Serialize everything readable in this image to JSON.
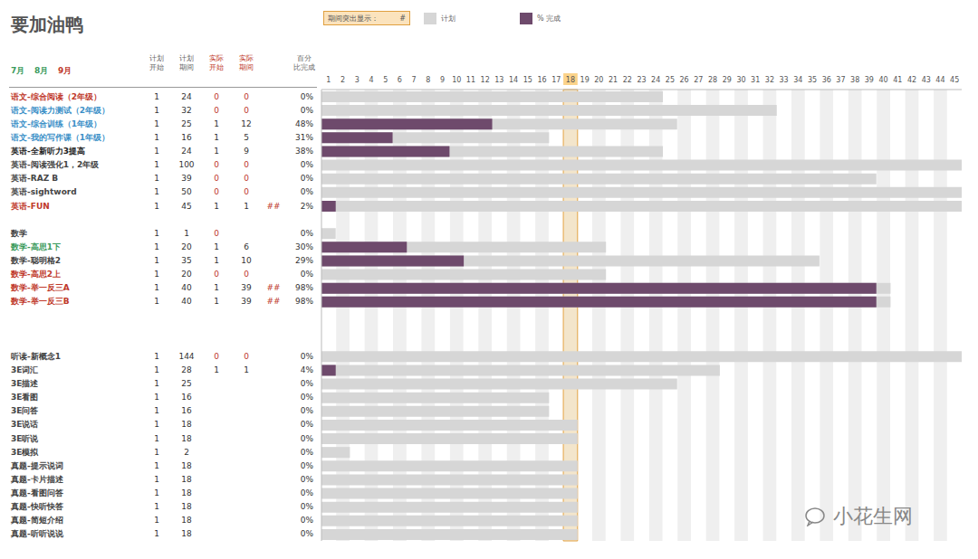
{
  "chart_data": {
    "type": "gantt",
    "title": "要加油鸭",
    "months": [
      {
        "label": "7月",
        "color": "#3a9a5b"
      },
      {
        "label": "8月",
        "color": "#3a9a5b"
      },
      {
        "label": "9月",
        "color": "#c0392b"
      }
    ],
    "columns": [
      "计划开始",
      "计划期间",
      "实际开始",
      "实际期间",
      "百分比完成"
    ],
    "column_colors": [
      "#666666",
      "#666666",
      "#c0392b",
      "#c0392b",
      "#666666"
    ],
    "highlight_label": "期间突出显示：",
    "highlight_text": "#",
    "highlight_period": 18,
    "series": [
      {
        "name": "计划",
        "color": "#d6d6d6"
      },
      {
        "name": "% 完成",
        "color": "#6e4a6c"
      }
    ],
    "legend": "top",
    "grid": true,
    "xlim": [
      1,
      46
    ],
    "xticks": [
      1,
      2,
      3,
      4,
      5,
      6,
      7,
      8,
      9,
      10,
      11,
      12,
      13,
      14,
      15,
      16,
      17,
      18,
      19,
      20,
      21,
      22,
      23,
      24,
      25,
      26,
      27,
      28,
      29,
      30,
      31,
      32,
      33,
      34,
      35,
      36,
      37,
      38,
      39,
      40,
      41,
      42,
      43,
      44,
      45
    ],
    "categories": [
      "语文-综合阅读（2年级）",
      "语文-阅读力测试（2年级）",
      "语文-综合训练（1年级）",
      "语文-我的写作课（1年级）",
      "英语-全新听力3提高",
      "英语-阅读强化1，2年级",
      "英语-RAZ B",
      "英语-sightword",
      "英语-FUN",
      null,
      "数学",
      "数学-高思1下",
      "数学-聪明格2",
      "数学-高思2上",
      "数学-举一反三A",
      "数学-举一反三B",
      null,
      null,
      null,
      "听读-新概念1",
      "3E词汇",
      "3E描述",
      "3E看图",
      "3E问答",
      "3E说话",
      "3E听说",
      "3E模拟",
      "真题-提示说词",
      "真题-卡片描述",
      "真题-看图问答",
      "真题-快听快答",
      "真题-简短介绍",
      "真题-听听说说"
    ],
    "label_colors": [
      "#c0392b",
      "#3a8fc7",
      "#3a8fc7",
      "#3a8fc7",
      "#222222",
      "#444444",
      "#444444",
      "#444444",
      "#c0392b",
      null,
      "#444444",
      "#3a9a5b",
      "#444444",
      "#c0392b",
      "#c0392b",
      "#c0392b",
      null,
      null,
      null,
      "#444444",
      "#444444",
      "#444444",
      "#444444",
      "#444444",
      "#444444",
      "#444444",
      "#444444",
      "#444444",
      "#444444",
      "#444444",
      "#444444",
      "#444444",
      "#444444"
    ],
    "plan_start": [
      1,
      1,
      1,
      1,
      1,
      1,
      1,
      1,
      1,
      null,
      1,
      1,
      1,
      1,
      1,
      1,
      null,
      null,
      null,
      1,
      1,
      1,
      1,
      1,
      1,
      1,
      1,
      1,
      1,
      1,
      1,
      1,
      1
    ],
    "plan_duration": [
      24,
      32,
      25,
      16,
      24,
      100,
      39,
      50,
      45,
      null,
      1,
      20,
      35,
      20,
      40,
      40,
      null,
      null,
      null,
      144,
      28,
      25,
      16,
      16,
      18,
      18,
      2,
      18,
      18,
      18,
      18,
      18,
      18
    ],
    "actual_start": [
      0,
      0,
      1,
      1,
      1,
      0,
      0,
      0,
      1,
      null,
      0,
      1,
      1,
      0,
      1,
      1,
      null,
      null,
      null,
      0,
      1,
      null,
      null,
      null,
      null,
      null,
      null,
      null,
      null,
      null,
      null,
      null,
      null
    ],
    "actual_duration": [
      0,
      0,
      12,
      5,
      9,
      0,
      0,
      0,
      1,
      null,
      null,
      6,
      10,
      0,
      39,
      39,
      null,
      null,
      null,
      0,
      1,
      null,
      null,
      null,
      null,
      null,
      null,
      null,
      null,
      null,
      null,
      null,
      null
    ],
    "flags": [
      null,
      null,
      null,
      null,
      null,
      null,
      null,
      null,
      "##",
      null,
      null,
      null,
      null,
      null,
      "##",
      "##",
      null,
      null,
      null,
      null,
      null,
      null,
      null,
      null,
      null,
      null,
      null,
      null,
      null,
      null,
      null,
      null,
      null
    ],
    "percent": [
      "0%",
      "0%",
      "48%",
      "31%",
      "38%",
      "0%",
      "0%",
      "0%",
      "2%",
      null,
      "0%",
      "30%",
      "29%",
      "0%",
      "98%",
      "98%",
      null,
      null,
      null,
      "0%",
      "4%",
      "0%",
      "0%",
      "0%",
      "0%",
      "0%",
      "0%",
      "0%",
      "0%",
      "0%",
      "0%",
      "0%",
      "0%"
    ],
    "watermark": "小花生网"
  }
}
